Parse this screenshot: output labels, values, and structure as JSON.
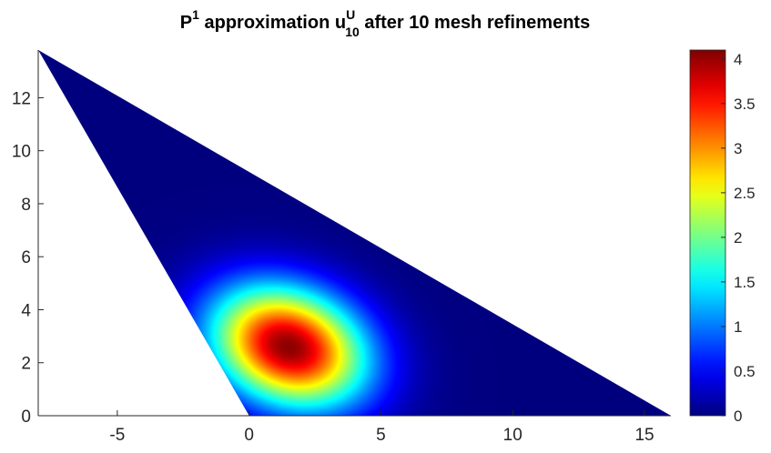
{
  "title": {
    "prefix": "P",
    "prefix_sup": "1",
    "middle": " approximation u",
    "sup": "U",
    "sub": "10",
    "suffix": " after 10 mesh refinements"
  },
  "chart_data": {
    "type": "heatmap",
    "plot": "filled contour on triangular domain",
    "title": "P1 approximation u10U after 10 mesh refinements",
    "xlabel": "",
    "ylabel": "",
    "xlim": [
      -8,
      16
    ],
    "ylim": [
      0,
      13.8
    ],
    "xticks": [
      -5,
      0,
      5,
      10,
      15
    ],
    "yticks": [
      0,
      2,
      4,
      6,
      8,
      10,
      12
    ],
    "domain_vertices": [
      [
        -8,
        13.8
      ],
      [
        0,
        0
      ],
      [
        16,
        0
      ]
    ],
    "peak": {
      "x": 1.5,
      "y": 2.6,
      "value": 4.05
    },
    "spread": {
      "sx": 2.1,
      "sy": 1.5,
      "tilt_deg": -20
    },
    "colorbar": {
      "colormap": "jet",
      "min": 0,
      "max": 4.1,
      "ticks": [
        0,
        0.5,
        1,
        1.5,
        2,
        2.5,
        3,
        3.5,
        4
      ]
    },
    "grid": false,
    "box": false
  },
  "colors": {
    "jet_stops": [
      "#00007f",
      "#0000ff",
      "#007fff",
      "#00ffff",
      "#7fff7f",
      "#ffff00",
      "#ff7f00",
      "#ff0000",
      "#7f0000"
    ],
    "axis": "#262626"
  }
}
